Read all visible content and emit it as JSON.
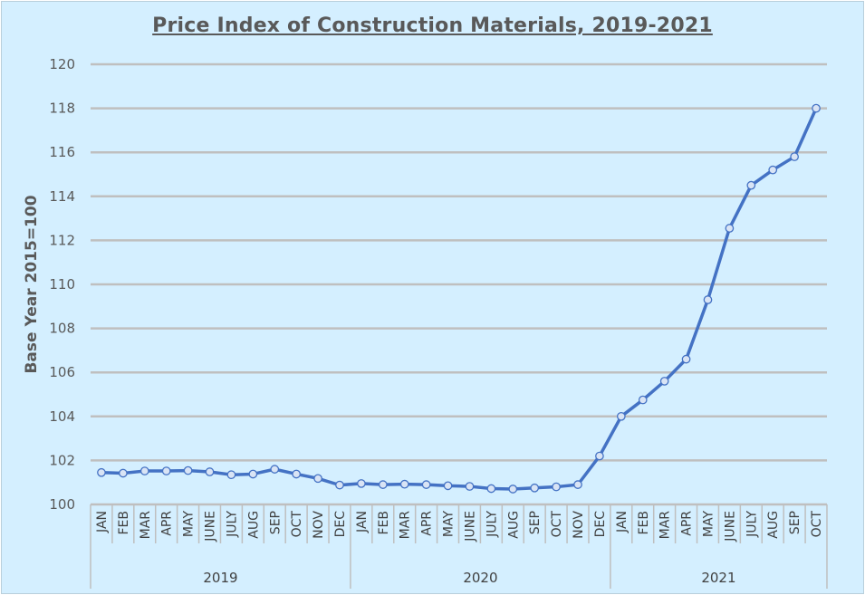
{
  "chart_data": {
    "type": "line",
    "title": "Price Index of Construction Materials, 2019-2021",
    "ylabel": "Base Year 2015=100",
    "ylim": [
      100,
      120
    ],
    "yticks": [
      100,
      102,
      104,
      106,
      108,
      110,
      112,
      114,
      116,
      118,
      120
    ],
    "grid": true,
    "groups": [
      {
        "year": "2019",
        "months": [
          "JAN",
          "FEB",
          "MAR",
          "APR",
          "MAY",
          "JUNE",
          "JULY",
          "AUG",
          "SEP",
          "OCT",
          "NOV",
          "DEC"
        ]
      },
      {
        "year": "2020",
        "months": [
          "JAN",
          "FEB",
          "MAR",
          "APR",
          "MAY",
          "JUNE",
          "JULY",
          "AUG",
          "SEP",
          "OCT",
          "NOV",
          "DEC"
        ]
      },
      {
        "year": "2021",
        "months": [
          "JAN",
          "FEB",
          "MAR",
          "APR",
          "MAY",
          "JUNE",
          "JULY",
          "AUG",
          "SEP",
          "OCT"
        ]
      }
    ],
    "series": [
      {
        "values": [
          101.45,
          101.42,
          101.52,
          101.52,
          101.54,
          101.48,
          101.35,
          101.38,
          101.6,
          101.38,
          101.18,
          100.88,
          100.95,
          100.9,
          100.92,
          100.9,
          100.85,
          100.82,
          100.72,
          100.7,
          100.75,
          100.8,
          100.9,
          102.2,
          104.0,
          104.75,
          105.6,
          106.6,
          109.3,
          112.55,
          114.5,
          115.2,
          115.8,
          118.0
        ],
        "color": "#4472c4"
      }
    ]
  }
}
